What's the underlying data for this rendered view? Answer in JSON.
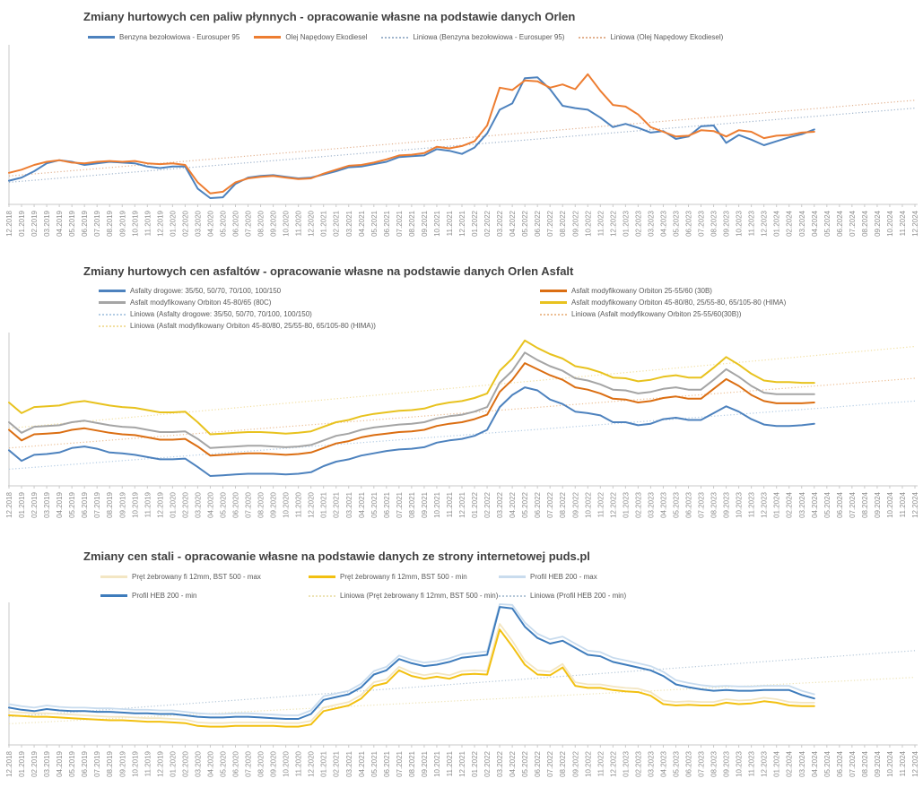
{
  "page": {
    "background": "#ffffff",
    "title_color": "#404040",
    "legend_text_color": "#595959",
    "axis_color": "#c9c9c9",
    "tick_label_color": "#8e8e8e"
  },
  "months": [
    "12.2018",
    "01.2019",
    "02.2019",
    "03.2019",
    "04.2019",
    "05.2019",
    "06.2019",
    "07.2019",
    "08.2019",
    "09.2019",
    "10.2019",
    "11.2019",
    "12.2019",
    "01.2020",
    "02.2020",
    "03.2020",
    "04.2020",
    "05.2020",
    "06.2020",
    "07.2020",
    "08.2020",
    "09.2020",
    "10.2020",
    "11.2020",
    "12.2020",
    "01.2021",
    "02.2021",
    "03.2021",
    "04.2021",
    "05.2021",
    "06.2021",
    "07.2021",
    "08.2021",
    "09.2021",
    "10.2021",
    "11.2021",
    "12.2021",
    "01.2022",
    "02.2022",
    "03.2022",
    "04.2022",
    "05.2022",
    "06.2022",
    "07.2022",
    "08.2022",
    "09.2022",
    "10.2022",
    "11.2022",
    "12.2022",
    "01.2023",
    "02.2023",
    "03.2023",
    "04.2023",
    "05.2023",
    "06.2023",
    "07.2023",
    "08.2023",
    "09.2023",
    "10.2023",
    "11.2023",
    "12.2023",
    "01.2024",
    "02.2024",
    "03.2024",
    "04.2024",
    "05.2024",
    "06.2024",
    "07.2024",
    "08.2024",
    "09.2024",
    "10.2024",
    "11.2024",
    "12.2024"
  ],
  "chart_data": [
    {
      "type": "line",
      "title": "Zmiany hurtowych cen paliw płynnych - opracowanie własne na podstawie danych Orlen",
      "x_interval": "monthly",
      "x_range": [
        "12.2018",
        "12.2024"
      ],
      "shared_x_categories": "months",
      "y_axis": {
        "labels_visible": false,
        "scale": "relative 0-100 of plot height (no value labels shown in source)"
      },
      "grid": false,
      "legend_position": "top",
      "data_ends_at": "04.2024",
      "legend": [
        {
          "label": "Benzyna bezołowiowa - Eurosuper 95",
          "swatch": "solid",
          "color": "#4D82BE"
        },
        {
          "label": "Olej Napędowy Ekodiesel",
          "swatch": "solid",
          "color": "#ED7D31"
        },
        {
          "label": "Liniowa (Benzyna bezołowiowa - Eurosuper 95)",
          "swatch": "dotted",
          "color": "#9FB4CC"
        },
        {
          "label": "Liniowa (Olej Napędowy Ekodiesel)",
          "swatch": "dotted",
          "color": "#E2B18F"
        }
      ],
      "series": [
        {
          "name": "Benzyna bezołowiowa - Eurosuper 95",
          "color": "#4D82BE",
          "width": 2,
          "values": [
            15,
            17,
            21,
            26,
            28,
            27,
            25,
            26,
            27,
            26.5,
            26,
            24,
            23,
            24,
            24,
            10,
            4,
            4.5,
            13,
            17,
            18,
            18.5,
            17.5,
            16.5,
            17,
            19,
            21,
            23.5,
            24,
            25.5,
            27,
            30,
            30.5,
            31,
            35,
            34,
            32,
            36,
            45,
            60,
            64,
            80,
            80.5,
            73,
            62.5,
            61,
            60,
            55,
            49,
            51,
            48.5,
            45.5,
            46.5,
            41.5,
            43,
            49.5,
            50,
            39,
            44,
            41,
            37.5,
            40,
            42.5,
            44.5,
            47.5
          ]
        },
        {
          "name": "Olej Napędowy Ekodiesel",
          "color": "#ED7D31",
          "width": 2,
          "values": [
            20,
            22,
            25,
            27,
            28,
            26.5,
            26,
            27,
            27.5,
            27,
            27.5,
            26,
            25.5,
            26,
            25,
            14,
            7,
            8,
            14,
            16.5,
            17.5,
            18,
            17,
            16,
            16.5,
            19.5,
            22,
            24.5,
            25,
            26.5,
            28.5,
            31,
            31.5,
            32.5,
            36.5,
            35.5,
            37,
            40,
            50,
            74,
            72.5,
            78.5,
            78,
            74,
            76,
            73,
            82.5,
            72,
            63,
            62,
            57,
            49,
            46,
            43,
            43.5,
            47,
            46.5,
            43,
            47,
            46,
            42,
            43.5,
            44,
            45.5,
            46
          ]
        }
      ],
      "trendlines": [
        {
          "name": "Liniowa (Benzyna bezołowiowa - Eurosuper 95)",
          "color": "#9FB4CC",
          "start": 14,
          "end": 61
        },
        {
          "name": "Liniowa (Olej Napędowy Ekodiesel)",
          "color": "#E2B18F",
          "start": 18,
          "end": 66
        }
      ]
    },
    {
      "type": "line",
      "title": "Zmiany hurtowych cen asfaltów - opracowanie własne na podstawie danych Orlen Asfalt",
      "x_interval": "monthly",
      "x_range": [
        "12.2018",
        "12.2024"
      ],
      "shared_x_categories": "months",
      "y_axis": {
        "labels_visible": false,
        "scale": "relative 0-100 of plot height (no value labels shown in source)"
      },
      "grid": false,
      "legend_position": "top",
      "data_ends_at": "04.2024",
      "legend": [
        {
          "label": "Asfalty drogowe: 35/50, 50/70, 70/100, 100/150",
          "swatch": "solid",
          "color": "#4D82BE"
        },
        {
          "label": "Asfalt modyfikowany Orbiton 25-55/60 (30B)",
          "swatch": "solid",
          "color": "#DB6E12"
        },
        {
          "label": "Asfalt modyfikowany Orbiton 45-80/65 (80C)",
          "swatch": "solid",
          "color": "#A5A5A5"
        },
        {
          "label": "Asfalt modyfikowany Orbiton 45-80/80, 25/55-80, 65/105-80 (HIMA)",
          "swatch": "solid",
          "color": "#E8C21E"
        },
        {
          "label": "Liniowa (Asfalty drogowe: 35/50, 50/70, 70/100, 100/150)",
          "swatch": "dotted",
          "color": "#B3CCE4"
        },
        {
          "label": "Liniowa (Asfalt modyfikowany Orbiton 25-55/60(30B))",
          "swatch": "dotted",
          "color": "#ECBE93"
        },
        {
          "label": "Liniowa (Asfalt modyfikowany Orbiton 45-80/80, 25/55-80, 65/105-80 (HIMA))",
          "swatch": "dotted",
          "color": "#F2DFA0"
        }
      ],
      "series": [
        {
          "name": "Asfalty drogowe: 35/50, 50/70, 70/100, 100/150",
          "color": "#4D82BE",
          "width": 2,
          "values": [
            23.5,
            16.5,
            20.5,
            21,
            22,
            25,
            26,
            24.5,
            22,
            21.5,
            20.5,
            19,
            17.5,
            17.5,
            18,
            12.5,
            6.5,
            7,
            7.5,
            8,
            8,
            8,
            7.5,
            8,
            9,
            13,
            16,
            17.5,
            20,
            21.5,
            23,
            24,
            24.5,
            25.5,
            28.5,
            30,
            31,
            33,
            37,
            52,
            60,
            65,
            63,
            57,
            54,
            49,
            48,
            46.5,
            42,
            42,
            40,
            41,
            44,
            45,
            43.5,
            43.5,
            48,
            52.5,
            49,
            44,
            40.5,
            39.5,
            39.5,
            40,
            41
          ]
        },
        {
          "name": "Asfalt modyfikowany Orbiton 25-55/60 (30B)",
          "color": "#DB6E12",
          "width": 2,
          "values": [
            37,
            30,
            34,
            34.5,
            35,
            37,
            38,
            36.5,
            35,
            34,
            33.5,
            32,
            30.5,
            30.5,
            31,
            26,
            20,
            20.5,
            21,
            21.5,
            21.5,
            21,
            20.5,
            21,
            22,
            25,
            28,
            29.5,
            32,
            33.5,
            34.5,
            35.5,
            36,
            37,
            39.5,
            41,
            42,
            44,
            47,
            62,
            70,
            81,
            77,
            73,
            70,
            65,
            63.5,
            61,
            57.5,
            57,
            55,
            56,
            58,
            59,
            57.5,
            57.5,
            64,
            70.5,
            66,
            60,
            56,
            54.5,
            54.5,
            54.5,
            55
          ]
        },
        {
          "name": "Asfalt modyfikowany Orbiton 45-80/65 (80C)",
          "color": "#A5A5A5",
          "width": 2,
          "values": [
            42,
            35,
            39,
            39.5,
            40,
            42,
            43,
            41.5,
            40,
            39,
            38.5,
            37,
            35.5,
            35.5,
            36,
            31,
            25,
            25.5,
            26,
            26.5,
            26.5,
            26,
            25.5,
            26,
            27,
            30,
            33,
            34.5,
            37,
            38.5,
            39.5,
            40.5,
            41,
            42,
            44.5,
            46,
            47,
            49,
            52,
            68,
            76,
            88,
            83,
            79,
            76,
            71,
            69.5,
            67,
            63.5,
            63,
            61,
            62,
            64,
            65,
            63.5,
            63.5,
            70,
            77,
            72,
            66,
            61.5,
            60.5,
            60.5,
            60.5,
            60.5
          ]
        },
        {
          "name": "Asfalt modyfikowany Orbiton 45-80/80, 25/55-80, 65/105-80 (HIMA)",
          "color": "#E8C21E",
          "width": 2,
          "values": [
            55,
            48,
            52,
            52.5,
            53,
            55,
            56,
            54.5,
            53,
            52,
            51.5,
            50,
            48.5,
            48.5,
            49,
            42,
            34,
            34.5,
            35,
            35.5,
            35.5,
            35,
            34.5,
            35,
            36,
            39,
            42,
            43.5,
            46,
            47.5,
            48.5,
            49.5,
            50,
            51,
            53.5,
            55,
            56,
            58,
            61,
            76,
            84,
            96,
            91,
            87,
            84,
            79,
            77.5,
            75,
            71.5,
            71,
            69,
            70,
            72,
            73,
            71.5,
            71.5,
            78,
            85,
            80,
            74,
            69.5,
            68.5,
            68.5,
            68,
            68
          ]
        }
      ],
      "trendlines": [
        {
          "name": "Liniowa (Asfalty drogowe: 35/50, 50/70, 70/100, 100/150)",
          "color": "#B3CCE4",
          "start": 11,
          "end": 56
        },
        {
          "name": "Liniowa (Asfalt modyfikowany Orbiton 25-55/60(30B))",
          "color": "#ECBE93",
          "start": 25,
          "end": 71
        },
        {
          "name": "Liniowa (Asfalt modyfikowany Orbiton 45-80/80, 25/55-80, 65/105-80 (HIMA))",
          "color": "#F2DFA0",
          "start": 38,
          "end": 92
        }
      ]
    },
    {
      "type": "line",
      "title": "Zmiany cen stali - opracowanie własne na podstawie danych ze strony internetowej puds.pl",
      "x_interval": "monthly",
      "x_range": [
        "12.2018",
        "12.2024"
      ],
      "shared_x_categories": "months",
      "y_axis": {
        "labels_visible": false,
        "scale": "relative 0-100 of plot height (no value labels shown in source)"
      },
      "grid": false,
      "legend_position": "top",
      "data_ends_at": "04.2024",
      "legend": [
        {
          "label": "Pręt żebrowany fi 12mm, BST 500 - max",
          "swatch": "solid",
          "color": "#F3E6C3"
        },
        {
          "label": "Pręt żebrowany fi 12mm, BST 500 - min",
          "swatch": "solid",
          "color": "#F2C011"
        },
        {
          "label": "Profil HEB 200 - max",
          "swatch": "solid",
          "color": "#C9DCEE"
        },
        {
          "label": "Profil HEB 200 - min",
          "swatch": "solid",
          "color": "#3E7CBC"
        },
        {
          "label": "Liniowa (Pręt żebrowany fi 12mm, BST 500 - min)",
          "swatch": "dotted",
          "color": "#EDE3B5"
        },
        {
          "label": "Liniowa (Profil HEB 200 - min)",
          "swatch": "dotted",
          "color": "#B4C7D8"
        }
      ],
      "series": [
        {
          "name": "Pręt żebrowany fi 12mm, BST 500 - max",
          "color": "#F3E6C3",
          "width": 1.8,
          "values": [
            23.5,
            23,
            22.5,
            22.5,
            22,
            21.5,
            21,
            20.5,
            20,
            20,
            19.5,
            19,
            19,
            18.5,
            18,
            16,
            15.5,
            15.5,
            16,
            16,
            16,
            16,
            15.5,
            15.5,
            17,
            26.5,
            28.5,
            30.5,
            35.5,
            44.5,
            46.5,
            55.5,
            51.5,
            49.5,
            51,
            49.5,
            52.5,
            53,
            52.5,
            86,
            74,
            60,
            53,
            52,
            57.5,
            44.5,
            43,
            43,
            41.5,
            40.5,
            40,
            37.5,
            31.5,
            30.5,
            31,
            30.5,
            30.5,
            32.5,
            31.5,
            32,
            33.5,
            32.5,
            30.5,
            30,
            30
          ]
        },
        {
          "name": "Profil HEB 200 - max",
          "color": "#C9DCEE",
          "width": 1.8,
          "values": [
            29,
            27.5,
            26.5,
            28,
            27,
            26.5,
            26.5,
            26,
            26,
            25.5,
            25,
            25,
            24.5,
            24.5,
            23.5,
            22.5,
            22,
            22,
            22.5,
            22.5,
            22,
            21.5,
            21,
            21,
            24.5,
            34.5,
            36.5,
            38.5,
            43.5,
            52.5,
            55.5,
            63.5,
            60.5,
            58.5,
            59.5,
            61.5,
            64.5,
            65.5,
            66.5,
            100,
            99.5,
            87,
            79,
            75,
            77,
            72,
            67,
            66,
            62,
            60,
            58,
            56,
            52,
            46,
            44,
            42.5,
            41.5,
            42,
            41.5,
            41.5,
            42,
            42,
            42,
            38.5,
            36
          ]
        },
        {
          "name": "Pręt żebrowany fi 12mm, BST 500 - min",
          "color": "#F2C011",
          "width": 2,
          "values": [
            21,
            20.5,
            20,
            20,
            19.5,
            19,
            18.5,
            18,
            17.5,
            17.5,
            17,
            16.5,
            16.5,
            16,
            15.5,
            13.5,
            13,
            13,
            13.5,
            13.5,
            13.5,
            13.5,
            13,
            13,
            14.5,
            24,
            26,
            28,
            33,
            42,
            44,
            53,
            49,
            47,
            48.5,
            47,
            50,
            50.5,
            50,
            82,
            70,
            57,
            50,
            49.5,
            55,
            42,
            40.5,
            40.5,
            39,
            38,
            37.5,
            35,
            29,
            28,
            28.5,
            28,
            28,
            30,
            29,
            29.5,
            31,
            30,
            28,
            27.5,
            27.5
          ]
        },
        {
          "name": "Profil HEB 200 - min",
          "color": "#3E7CBC",
          "width": 2,
          "values": [
            26.5,
            25,
            24,
            25.5,
            24.5,
            24,
            24,
            23.5,
            23.5,
            23,
            22.5,
            22.5,
            22,
            22,
            21,
            20,
            19.5,
            19.5,
            20,
            20,
            19.5,
            19,
            18.5,
            18.5,
            22,
            32,
            34,
            36,
            41,
            50,
            53,
            61,
            58,
            56,
            57,
            59,
            62,
            63,
            64,
            98,
            97,
            84,
            76,
            72,
            74,
            69,
            64,
            63,
            59,
            57,
            55,
            53,
            49,
            43,
            41,
            39.5,
            38.5,
            39,
            38.5,
            38.5,
            39,
            39,
            39,
            35.5,
            33
          ]
        }
      ],
      "trendlines": [
        {
          "name": "Liniowa (Pręt żebrowany fi 12mm, BST 500 - min)",
          "color": "#EDE3B5",
          "start": 15,
          "end": 48
        },
        {
          "name": "Liniowa (Profil HEB 200 - min)",
          "color": "#B4C7D8",
          "start": 20,
          "end": 67
        }
      ]
    }
  ]
}
